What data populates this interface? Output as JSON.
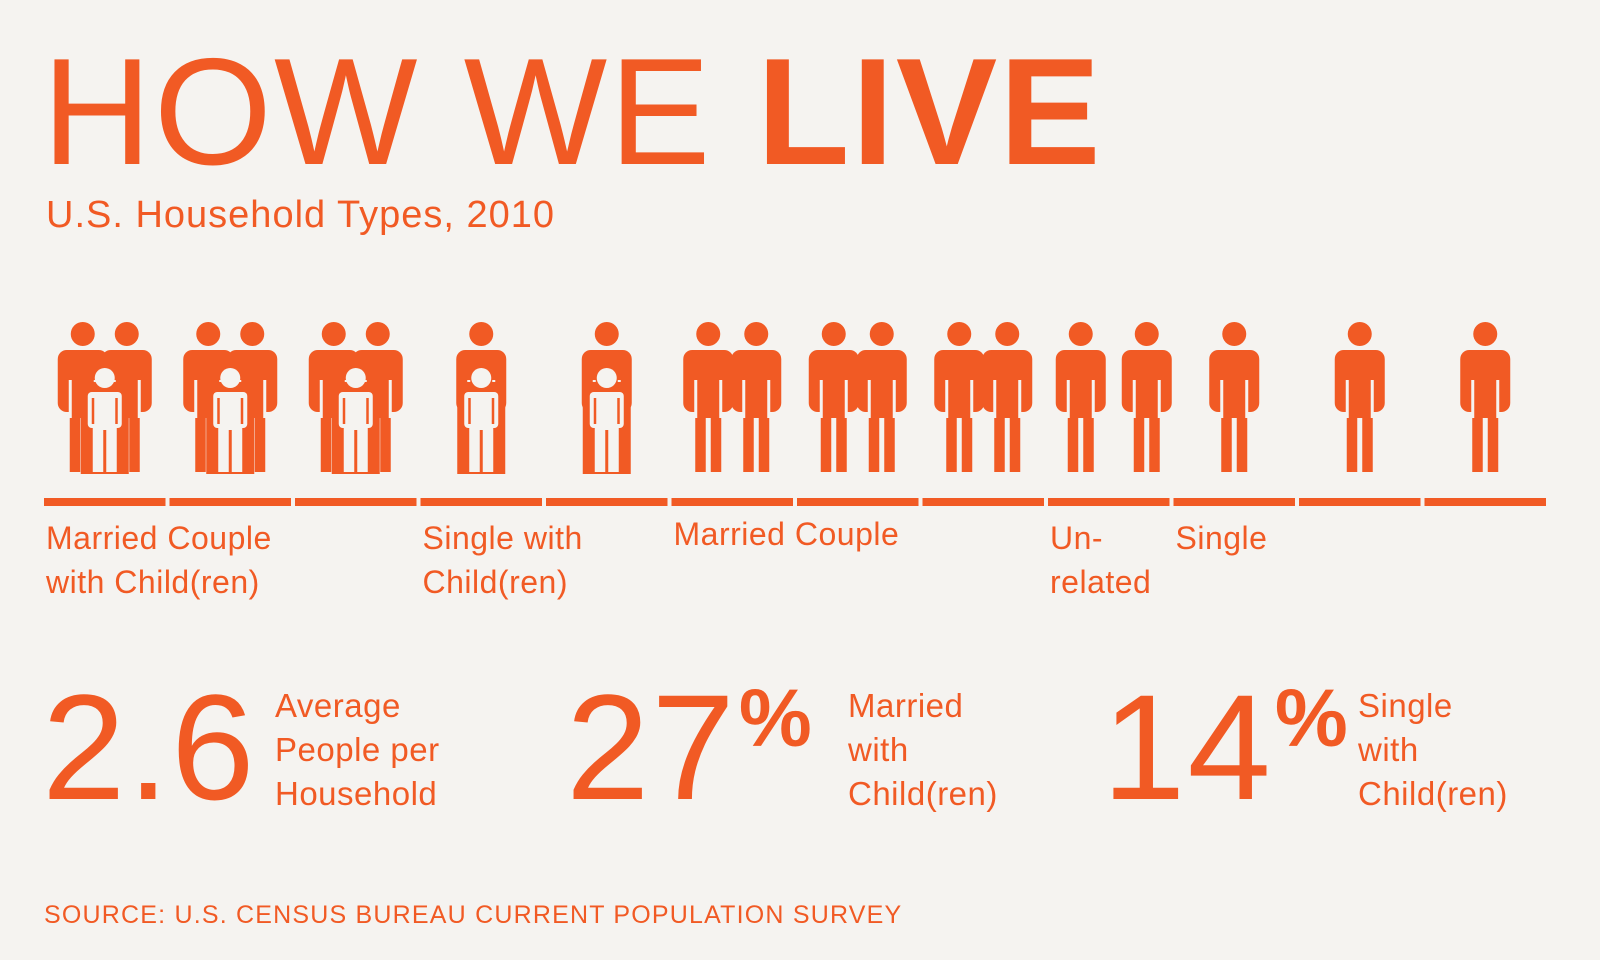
{
  "title": {
    "light": "HOW WE",
    "bold": "LIVE"
  },
  "subtitle": "U.S. Household Types, 2010",
  "chart_data": {
    "type": "pictogram",
    "title": "HOW WE LIVE",
    "subtitle": "U.S. Household Types, 2010",
    "categories": [
      {
        "label_lines": [
          "Married Couple",
          "with Child(ren)"
        ],
        "household_count": 3,
        "figure": "two-adults-with-child"
      },
      {
        "label_lines": [
          "Single with",
          "Child(ren)"
        ],
        "household_count": 2,
        "figure": "one-adult-with-child"
      },
      {
        "label_lines": [
          "Married Couple"
        ],
        "household_count": 3,
        "figure": "two-adults"
      },
      {
        "label_lines": [
          "Un-",
          "related"
        ],
        "household_count": 1,
        "figure": "two-adults-apart"
      },
      {
        "label_lines": [
          "Single"
        ],
        "household_count": 3,
        "figure": "one-adult"
      }
    ],
    "total_households_shown": 12
  },
  "stats": [
    {
      "value": "2.6",
      "suffix": "",
      "desc": [
        "Average",
        "People per",
        "Household"
      ]
    },
    {
      "value": "27",
      "suffix": "%",
      "desc": [
        "Married",
        "with",
        "Child(ren)"
      ]
    },
    {
      "value": "14",
      "suffix": "%",
      "desc": [
        "Single",
        "with",
        "Child(ren)"
      ]
    }
  ],
  "source": "SOURCE: U.S. CENSUS BUREAU CURRENT POPULATION SURVEY",
  "colors": {
    "accent": "#f15a24",
    "background": "#f5f3f0"
  },
  "icons": [
    "adult-figure-icon",
    "child-figure-icon"
  ]
}
